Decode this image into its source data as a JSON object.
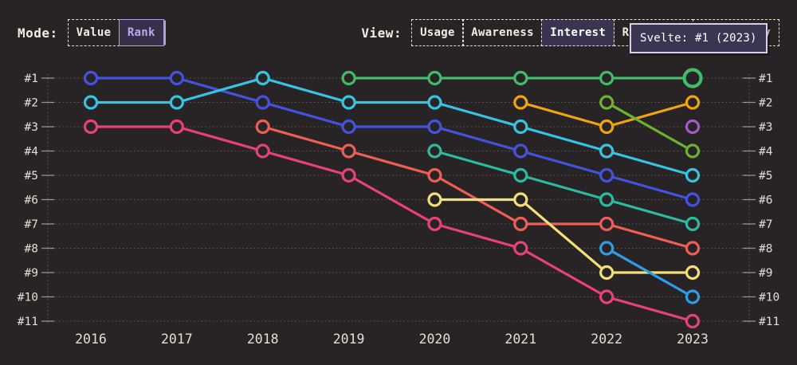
{
  "controls": {
    "mode_label": "Mode:",
    "modes": [
      {
        "label": "Value",
        "selected": false
      },
      {
        "label": "Rank",
        "selected": true
      }
    ],
    "view_label": "View:",
    "views": [
      {
        "label": "Usage",
        "selected": false
      },
      {
        "label": "Awareness",
        "selected": false
      },
      {
        "label": "Interest",
        "selected": true
      },
      {
        "label": "Retention",
        "selected": false
      },
      {
        "label": "Positivity",
        "selected": false
      }
    ]
  },
  "tooltip": {
    "text": "Svelte: #1 (2023)"
  },
  "colors": {
    "background": "#282324",
    "accent_purple": "#b3a0e4",
    "tooltip_bg": "#3c3552",
    "tooltip_border": "#d6d0e6"
  },
  "chart_data": {
    "type": "line",
    "variant": "rank-bump",
    "x": [
      2016,
      2017,
      2018,
      2019,
      2020,
      2021,
      2022,
      2023
    ],
    "y_tick_labels": [
      "#1",
      "#2",
      "#3",
      "#4",
      "#5",
      "#6",
      "#7",
      "#8",
      "#9",
      "#10",
      "#11"
    ],
    "ylim": [
      1,
      11
    ],
    "grid": true,
    "legend": "none",
    "series": [
      {
        "id": "royal-blue",
        "color": "#4353e0",
        "ranks": [
          1,
          1,
          2,
          3,
          3,
          4,
          5,
          6
        ]
      },
      {
        "id": "cyan",
        "color": "#35c5e2",
        "ranks": [
          2,
          2,
          1,
          2,
          2,
          3,
          4,
          5
        ]
      },
      {
        "id": "magenta",
        "color": "#e84179",
        "ranks": [
          3,
          3,
          4,
          5,
          7,
          8,
          10,
          11
        ]
      },
      {
        "id": "salmon",
        "color": "#ee5e55",
        "ranks": [
          null,
          null,
          3,
          4,
          5,
          7,
          7,
          8
        ]
      },
      {
        "id": "svelte-green",
        "name": "Svelte",
        "color": "#41bd69",
        "ranks": [
          null,
          null,
          null,
          1,
          1,
          1,
          1,
          1
        ]
      },
      {
        "id": "teal",
        "color": "#2bbba2",
        "ranks": [
          null,
          null,
          null,
          null,
          4,
          5,
          6,
          7
        ]
      },
      {
        "id": "yellow",
        "color": "#f2e077",
        "ranks": [
          null,
          null,
          null,
          null,
          6,
          6,
          9,
          9
        ]
      },
      {
        "id": "amber",
        "color": "#f0a40e",
        "ranks": [
          null,
          null,
          null,
          null,
          null,
          2,
          3,
          2
        ]
      },
      {
        "id": "olive",
        "color": "#6cb231",
        "ranks": [
          null,
          null,
          null,
          null,
          null,
          null,
          2,
          4
        ]
      },
      {
        "id": "dodger-blue",
        "color": "#2f9de6",
        "ranks": [
          null,
          null,
          null,
          null,
          null,
          null,
          8,
          10
        ]
      },
      {
        "id": "purple",
        "color": "#a45cc5",
        "ranks": [
          null,
          null,
          null,
          null,
          null,
          null,
          null,
          3
        ]
      }
    ],
    "highlight": {
      "series": "svelte-green",
      "year": 2023,
      "rank": 1
    }
  }
}
